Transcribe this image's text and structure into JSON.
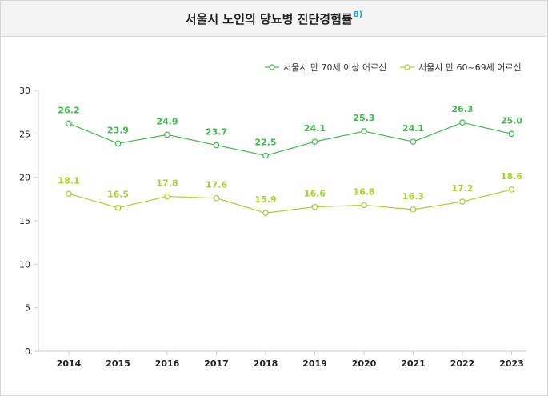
{
  "title": "서울시 노인의 당뇨병 진단경험률",
  "title_note": "8)",
  "colors": {
    "series1": "#3dbb4a",
    "series2": "#a6d22c",
    "axis": "#cccccc",
    "note": "#1aa3d6"
  },
  "chart_data": {
    "type": "line",
    "title": "서울시 노인의 당뇨병 진단경험률",
    "xlabel": "",
    "ylabel": "",
    "categories": [
      "2014",
      "2015",
      "2016",
      "2017",
      "2018",
      "2019",
      "2020",
      "2021",
      "2022",
      "2023"
    ],
    "ylim": [
      0,
      30
    ],
    "yticks": [
      "0",
      "5",
      "10",
      "15",
      "20",
      "25",
      "30"
    ],
    "grid": false,
    "legend_position": "top-right",
    "series": [
      {
        "name": "서울시 만 70세 이상 어르신",
        "values": [
          26.2,
          23.9,
          24.9,
          23.7,
          22.5,
          24.1,
          25.3,
          24.1,
          26.3,
          25.0
        ],
        "labels": [
          "26.2",
          "23.9",
          "24.9",
          "23.7",
          "22.5",
          "24.1",
          "25.3",
          "24.1",
          "26.3",
          "25.0"
        ]
      },
      {
        "name": "서울시 만 60~69세 어르신",
        "values": [
          18.1,
          16.5,
          17.8,
          17.6,
          15.9,
          16.6,
          16.8,
          16.3,
          17.2,
          18.6
        ],
        "labels": [
          "18.1",
          "16.5",
          "17.8",
          "17.6",
          "15.9",
          "16.6",
          "16.8",
          "16.3",
          "17.2",
          "18.6"
        ]
      }
    ]
  }
}
